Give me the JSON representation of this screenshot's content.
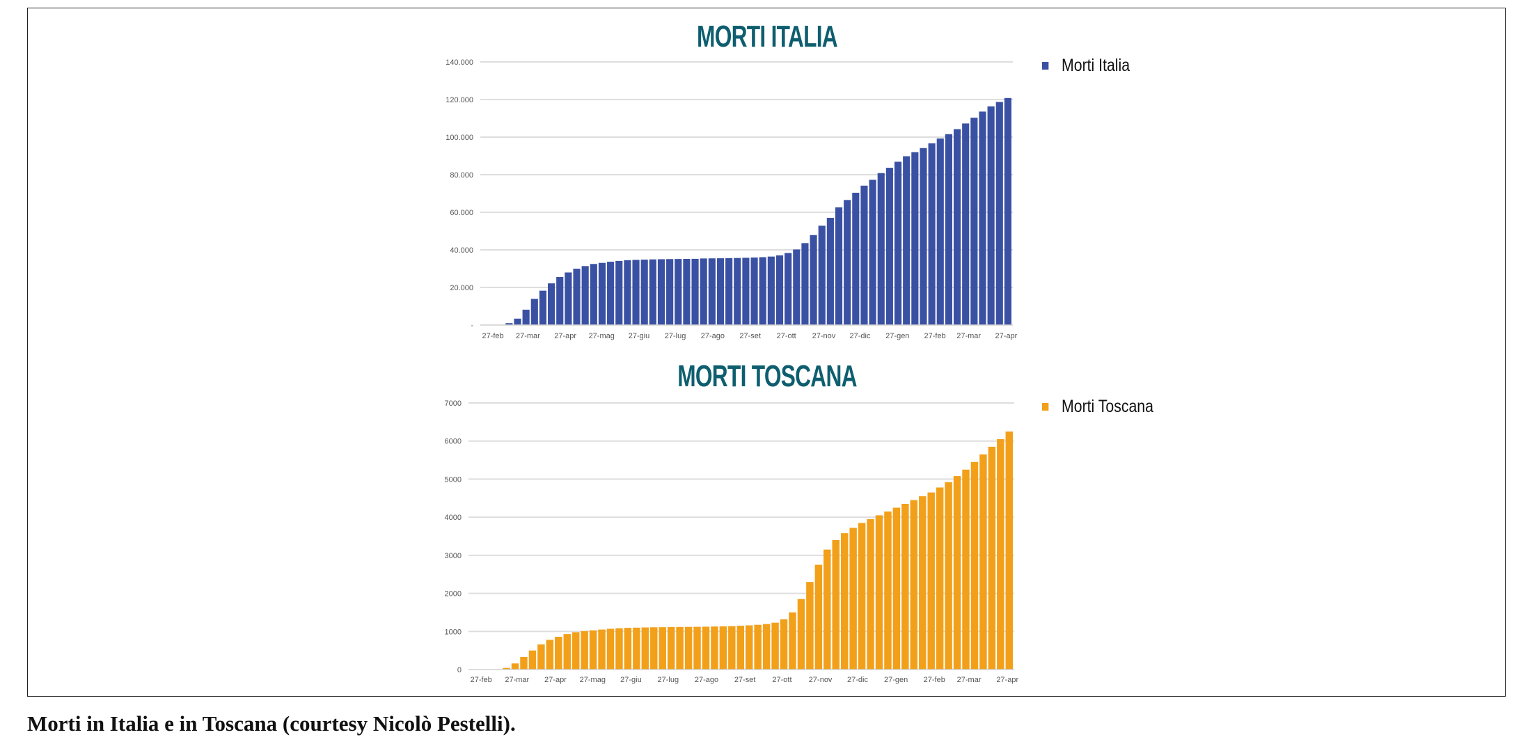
{
  "caption": "Morti in Italia e in Toscana (courtesy Nicolò Pestelli).",
  "chart_data": [
    {
      "type": "bar",
      "title": "MORTI ITALIA",
      "title_color": "#0e5e6f",
      "color": "#3a51a3",
      "legend": {
        "label": "Morti Italia",
        "placement": "right"
      },
      "grid": true,
      "ylim": [
        0,
        140000
      ],
      "yticks": [
        0,
        20000,
        40000,
        60000,
        80000,
        100000,
        120000,
        140000
      ],
      "ytick_labels": [
        "-",
        "20.000",
        "40.000",
        "60.000",
        "80.000",
        "100.000",
        "120.000",
        "140.000"
      ],
      "xticks": [
        "2020-02-27",
        "2020-03-27",
        "2020-04-27",
        "2020-05-27",
        "2020-06-27",
        "2020-07-27",
        "2020-08-27",
        "2020-09-27",
        "2020-10-27",
        "2020-11-27",
        "2020-12-27",
        "2021-01-27",
        "2021-02-27",
        "2021-03-27",
        "2021-04-27"
      ],
      "xtick_labels": [
        "27-feb",
        "27-mar",
        "27-apr",
        "27-mag",
        "27-giu",
        "27-lug",
        "27-ago",
        "27-set",
        "27-ott",
        "27-nov",
        "27-dic",
        "27-gen",
        "27-feb",
        "27-mar",
        "27-apr"
      ],
      "values": [
        17,
        148,
        1016,
        3405,
        8165,
        13915,
        18279,
        22170,
        25549,
        27967,
        29958,
        31368,
        32486,
        33072,
        33689,
        34114,
        34514,
        34678,
        34818,
        34926,
        35017,
        35092,
        35141,
        35187,
        35225,
        35418,
        35472,
        35518,
        35587,
        35668,
        35781,
        35918,
        36111,
        36427,
        37059,
        38321,
        40192,
        43589,
        47870,
        52850,
        57045,
        62626,
        66537,
        70395,
        74159,
        77291,
        80848,
        83681,
        86889,
        89820,
        92002,
        94171,
        96666,
        99271,
        101564,
        104241,
        107256,
        110328,
        113579,
        116366,
        118699,
        120807
      ]
    },
    {
      "type": "bar",
      "title": "MORTI TOSCANA",
      "title_color": "#0e5e6f",
      "color": "#f2a01a",
      "legend": {
        "label": "Morti Toscana",
        "placement": "right"
      },
      "grid": true,
      "ylim": [
        0,
        7000
      ],
      "yticks": [
        0,
        1000,
        2000,
        3000,
        4000,
        5000,
        6000,
        7000
      ],
      "ytick_labels": [
        "0",
        "1000",
        "2000",
        "3000",
        "4000",
        "5000",
        "6000",
        "7000"
      ],
      "xticks": [
        "2020-02-27",
        "2020-03-27",
        "2020-04-27",
        "2020-05-27",
        "2020-06-27",
        "2020-07-27",
        "2020-08-27",
        "2020-09-27",
        "2020-10-27",
        "2020-11-27",
        "2020-12-27",
        "2021-01-27",
        "2021-02-27",
        "2021-03-27",
        "2021-04-27"
      ],
      "xtick_labels": [
        "27-feb",
        "27-mar",
        "27-apr",
        "27-mag",
        "27-giu",
        "27-lug",
        "27-ago",
        "27-set",
        "27-ott",
        "27-nov",
        "27-dic",
        "27-gen",
        "27-feb",
        "27-mar",
        "27-apr"
      ],
      "values": [
        0,
        0,
        5,
        43,
        160,
        330,
        500,
        660,
        780,
        860,
        930,
        980,
        1010,
        1030,
        1050,
        1070,
        1085,
        1095,
        1100,
        1105,
        1110,
        1112,
        1115,
        1118,
        1120,
        1122,
        1125,
        1130,
        1135,
        1140,
        1150,
        1160,
        1175,
        1195,
        1230,
        1320,
        1500,
        1850,
        2300,
        2750,
        3150,
        3400,
        3580,
        3720,
        3850,
        3950,
        4050,
        4150,
        4250,
        4350,
        4450,
        4550,
        4650,
        4780,
        4920,
        5080,
        5250,
        5450,
        5650,
        5850,
        6050,
        6250
      ]
    }
  ],
  "x_dates": {
    "first": "2020-02-27",
    "last": "2021-04-29"
  }
}
